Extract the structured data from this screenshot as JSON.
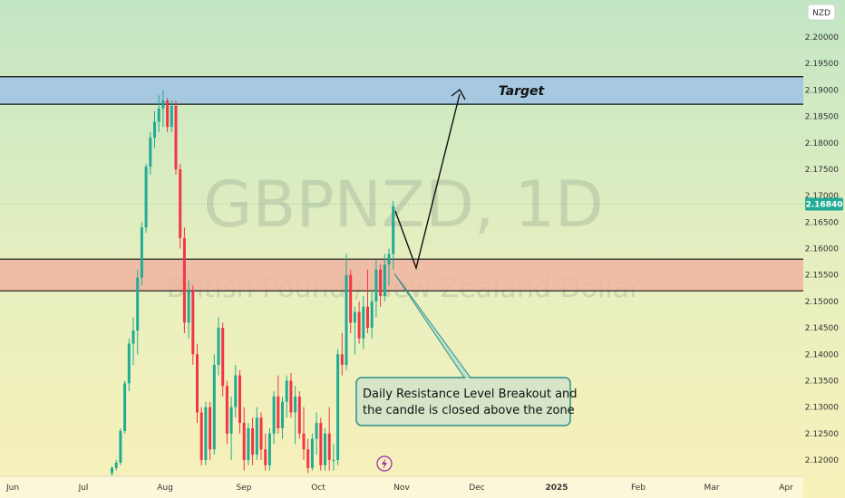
{
  "chart_data": {
    "type": "candlestick",
    "watermark": {
      "symbol": "GBPNZD, 1D",
      "description": "British Pound / New Zealand Dollar"
    },
    "currency_label": "NZD",
    "last_price": "2.16840",
    "y_ticks": [
      "2.20000",
      "2.19500",
      "2.19000",
      "2.18500",
      "2.18000",
      "2.17500",
      "2.17000",
      "2.16500",
      "2.16000",
      "2.15500",
      "2.15000",
      "2.14500",
      "2.14000",
      "2.13500",
      "2.13000",
      "2.12500",
      "2.12000"
    ],
    "y_range": [
      2.1175,
      2.2055
    ],
    "x_ticks": [
      "Jun",
      "Jul",
      "Aug",
      "Sep",
      "Oct",
      "Nov",
      "Dec",
      "2025",
      "Feb",
      "Mar",
      "Apr"
    ],
    "zones": [
      {
        "name": "target-zone",
        "from": 2.1873,
        "to": 2.1925,
        "color": "#9fc3e6"
      },
      {
        "name": "support-zone",
        "from": 2.152,
        "to": 2.158,
        "color": "#f0b4a0"
      }
    ],
    "annotations": {
      "target_label": "Target",
      "callout_line1": "Daily Resistance Level Breakout and",
      "callout_line2": "the candle is closed above the zone"
    },
    "colors": {
      "up": "#22ab94",
      "down": "#f23645",
      "last_price_bg": "#22ab94"
    },
    "candles": [
      [
        2.1175,
        2.1188,
        2.117,
        2.1185
      ],
      [
        2.1185,
        2.12,
        2.118,
        2.1195
      ],
      [
        2.1195,
        2.126,
        2.119,
        2.1255
      ],
      [
        2.1255,
        2.135,
        2.125,
        2.1345
      ],
      [
        2.1345,
        2.143,
        2.133,
        2.142
      ],
      [
        2.142,
        2.147,
        2.138,
        2.1445
      ],
      [
        2.1445,
        2.156,
        2.14,
        2.1545
      ],
      [
        2.1545,
        2.165,
        2.153,
        2.164
      ],
      [
        2.164,
        2.176,
        2.163,
        2.1755
      ],
      [
        2.1755,
        2.182,
        2.174,
        2.181
      ],
      [
        2.181,
        2.186,
        2.179,
        2.184
      ],
      [
        2.184,
        2.189,
        2.182,
        2.1865
      ],
      [
        2.1865,
        2.19,
        2.183,
        2.188
      ],
      [
        2.188,
        2.1885,
        2.182,
        2.183
      ],
      [
        2.183,
        2.188,
        2.182,
        2.187
      ],
      [
        2.187,
        2.188,
        2.174,
        2.175
      ],
      [
        2.175,
        2.176,
        2.16,
        2.162
      ],
      [
        2.162,
        2.164,
        2.144,
        2.146
      ],
      [
        2.146,
        2.154,
        2.143,
        2.152
      ],
      [
        2.152,
        2.153,
        2.138,
        2.14
      ],
      [
        2.14,
        2.142,
        2.127,
        2.129
      ],
      [
        2.129,
        2.13,
        2.119,
        2.12
      ],
      [
        2.12,
        2.131,
        2.119,
        2.13
      ],
      [
        2.13,
        2.131,
        2.12,
        2.122
      ],
      [
        2.122,
        2.14,
        2.121,
        2.138
      ],
      [
        2.138,
        2.147,
        2.136,
        2.145
      ],
      [
        2.145,
        2.146,
        2.132,
        2.134
      ],
      [
        2.134,
        2.135,
        2.123,
        2.125
      ],
      [
        2.125,
        2.132,
        2.12,
        2.13
      ],
      [
        2.13,
        2.138,
        2.128,
        2.136
      ],
      [
        2.136,
        2.137,
        2.125,
        2.127
      ],
      [
        2.127,
        2.13,
        2.118,
        2.12
      ],
      [
        2.12,
        2.127,
        2.119,
        2.126
      ],
      [
        2.126,
        2.128,
        2.119,
        2.121
      ],
      [
        2.121,
        2.13,
        2.12,
        2.128
      ],
      [
        2.128,
        2.129,
        2.12,
        2.122
      ],
      [
        2.122,
        2.125,
        2.118,
        2.119
      ],
      [
        2.119,
        2.126,
        2.118,
        2.125
      ],
      [
        2.125,
        2.133,
        2.123,
        2.132
      ],
      [
        2.132,
        2.136,
        2.125,
        2.126
      ],
      [
        2.126,
        2.132,
        2.124,
        2.131
      ],
      [
        2.131,
        2.136,
        2.128,
        2.135
      ],
      [
        2.135,
        2.1365,
        2.128,
        2.129
      ],
      [
        2.129,
        2.134,
        2.123,
        2.132
      ],
      [
        2.132,
        2.133,
        2.124,
        2.125
      ],
      [
        2.125,
        2.13,
        2.12,
        2.122
      ],
      [
        2.122,
        2.124,
        2.1175,
        2.1185
      ],
      [
        2.1185,
        2.125,
        2.118,
        2.124
      ],
      [
        2.124,
        2.129,
        2.121,
        2.127
      ],
      [
        2.127,
        2.128,
        2.118,
        2.119
      ],
      [
        2.119,
        2.126,
        2.118,
        2.125
      ],
      [
        2.125,
        2.13,
        2.118,
        2.12
      ],
      [
        2.12,
        2.123,
        2.118,
        2.12
      ],
      [
        2.12,
        2.141,
        2.119,
        2.14
      ],
      [
        2.14,
        2.144,
        2.136,
        2.138
      ],
      [
        2.138,
        2.159,
        2.137,
        2.155
      ],
      [
        2.155,
        2.156,
        2.144,
        2.146
      ],
      [
        2.146,
        2.149,
        2.14,
        2.148
      ],
      [
        2.148,
        2.15,
        2.142,
        2.143
      ],
      [
        2.143,
        2.151,
        2.141,
        2.149
      ],
      [
        2.149,
        2.156,
        2.144,
        2.145
      ],
      [
        2.145,
        2.152,
        2.143,
        2.15
      ],
      [
        2.15,
        2.158,
        2.147,
        2.156
      ],
      [
        2.156,
        2.157,
        2.149,
        2.151
      ],
      [
        2.151,
        2.159,
        2.15,
        2.157
      ],
      [
        2.157,
        2.16,
        2.153,
        2.159
      ],
      [
        2.159,
        2.169,
        2.156,
        2.168
      ]
    ]
  }
}
